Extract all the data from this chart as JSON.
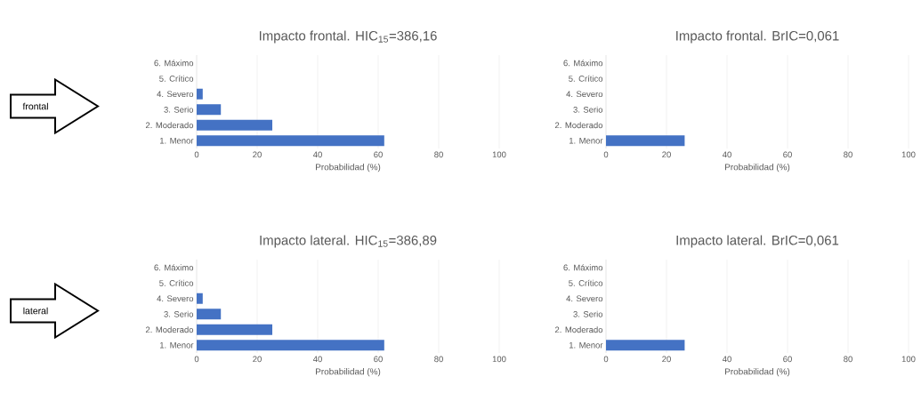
{
  "chart_data": [
    {
      "type": "bar",
      "orientation": "horizontal",
      "title": "Impacto frontal. HIC$_{15}$=386,16",
      "categories": [
        "6. Máximo",
        "5. Crítico",
        "4. Severo",
        "3. Serio",
        "2. Moderado",
        "1. Menor"
      ],
      "values": [
        0,
        0,
        2,
        8,
        25,
        62
      ],
      "color": "#4472c4",
      "xlim": [
        0,
        100
      ],
      "xticks": [
        0,
        20,
        40,
        60,
        80,
        100
      ],
      "xlabel": "Probabilidad (%)",
      "grid": "x",
      "annotations": [
        "frontal"
      ]
    },
    {
      "type": "bar",
      "orientation": "horizontal",
      "title": "Impacto frontal. BrIC=0,061",
      "categories": [
        "6. Máximo",
        "5. Crítico",
        "4. Severo",
        "3. Serio",
        "2. Moderado",
        "1. Menor"
      ],
      "values": [
        0,
        0,
        0,
        0,
        0,
        26
      ],
      "color": "#4472c4",
      "xlim": [
        0,
        100
      ],
      "xticks": [
        0,
        20,
        40,
        60,
        80,
        100
      ],
      "xlabel": "Probabilidad (%)",
      "grid": "x"
    },
    {
      "type": "bar",
      "orientation": "horizontal",
      "title": "Impacto lateral. HIC$_{15}$=386,89",
      "categories": [
        "6. Máximo",
        "5. Crítico",
        "4. Severo",
        "3. Serio",
        "2. Moderado",
        "1. Menor"
      ],
      "values": [
        0,
        0,
        2,
        8,
        25,
        62
      ],
      "color": "#4472c4",
      "xlim": [
        0,
        100
      ],
      "xticks": [
        0,
        20,
        40,
        60,
        80,
        100
      ],
      "xlabel": "Probabilidad (%)",
      "grid": "x",
      "annotations": [
        "lateral"
      ]
    },
    {
      "type": "bar",
      "orientation": "horizontal",
      "title": "Impacto lateral. BrIC=0,061",
      "categories": [
        "6. Máximo",
        "5. Crítico",
        "4. Severo",
        "3. Serio",
        "2. Moderado",
        "1. Menor"
      ],
      "values": [
        0,
        0,
        0,
        0,
        0,
        26
      ],
      "color": "#4472c4",
      "xlim": [
        0,
        100
      ],
      "xticks": [
        0,
        20,
        40,
        60,
        80,
        100
      ],
      "xlabel": "Probabilidad (%)",
      "grid": "x"
    }
  ]
}
